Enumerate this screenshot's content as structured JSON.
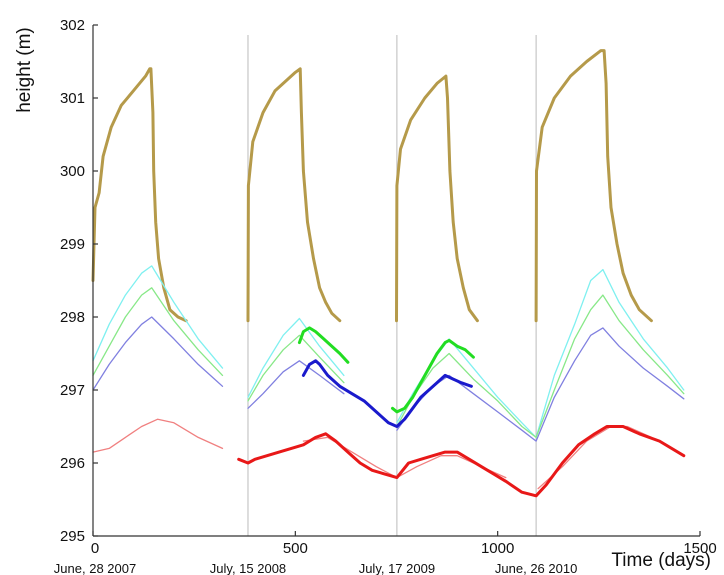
{
  "chart_data": {
    "type": "line",
    "title": "",
    "xlabel": "Time (days)",
    "ylabel": "height (m)",
    "xlim": [
      0,
      1500
    ],
    "ylim": [
      295,
      302
    ],
    "x_ticks": [
      0,
      500,
      1000,
      1500
    ],
    "y_ticks": [
      295,
      296,
      297,
      298,
      299,
      300,
      301,
      302
    ],
    "x_tick_labels": [
      "0",
      "500",
      "1000",
      "1500"
    ],
    "y_tick_labels": [
      "295",
      "296",
      "297",
      "298",
      "299",
      "300",
      "301",
      "302"
    ],
    "date_markers": [
      {
        "x": 0,
        "label": "June, 28 2007"
      },
      {
        "x": 383,
        "label": "July, 15 2008"
      },
      {
        "x": 751,
        "label": "July, 17 2009"
      },
      {
        "x": 1095,
        "label": "June, 26 2010"
      }
    ],
    "grid": false,
    "series": [
      {
        "color": "#b59a4a",
        "values": [
          [
            0,
            298.5
          ],
          [
            5,
            299.5
          ],
          [
            15,
            299.7
          ],
          [
            25,
            300.2
          ],
          [
            45,
            300.6
          ],
          [
            70,
            300.9
          ],
          [
            100,
            301.1
          ],
          [
            130,
            301.3
          ],
          [
            140,
            301.4
          ],
          [
            143,
            301.4
          ],
          [
            148,
            300.8
          ],
          [
            150,
            300.0
          ],
          [
            155,
            299.3
          ],
          [
            162,
            298.8
          ],
          [
            175,
            298.4
          ],
          [
            190,
            298.1
          ],
          [
            210,
            298.0
          ],
          [
            230,
            297.95
          ],
          [
            383,
            297.95
          ],
          [
            384,
            299.8
          ],
          [
            395,
            300.4
          ],
          [
            420,
            300.8
          ],
          [
            450,
            301.1
          ],
          [
            480,
            301.25
          ],
          [
            500,
            301.35
          ],
          [
            512,
            301.4
          ],
          [
            515,
            300.8
          ],
          [
            520,
            300.0
          ],
          [
            530,
            299.3
          ],
          [
            545,
            298.8
          ],
          [
            560,
            298.4
          ],
          [
            575,
            298.2
          ],
          [
            590,
            298.05
          ],
          [
            610,
            297.95
          ],
          [
            750,
            297.95
          ],
          [
            751,
            299.8
          ],
          [
            760,
            300.3
          ],
          [
            785,
            300.7
          ],
          [
            820,
            301.0
          ],
          [
            850,
            301.2
          ],
          [
            872,
            301.3
          ],
          [
            876,
            301.0
          ],
          [
            882,
            300.0
          ],
          [
            890,
            299.3
          ],
          [
            900,
            298.8
          ],
          [
            915,
            298.4
          ],
          [
            930,
            298.1
          ],
          [
            950,
            297.95
          ],
          [
            1095,
            297.95
          ],
          [
            1096,
            300.0
          ],
          [
            1110,
            300.6
          ],
          [
            1140,
            301.0
          ],
          [
            1180,
            301.3
          ],
          [
            1220,
            301.5
          ],
          [
            1255,
            301.65
          ],
          [
            1263,
            301.65
          ],
          [
            1268,
            301.2
          ],
          [
            1272,
            300.2
          ],
          [
            1280,
            299.5
          ],
          [
            1295,
            299.0
          ],
          [
            1310,
            298.6
          ],
          [
            1330,
            298.3
          ],
          [
            1350,
            298.1
          ],
          [
            1380,
            297.95
          ],
          [
            1460,
            297.95
          ]
        ]
      },
      {
        "color": "#7ff0f0",
        "values": [
          [
            0,
            297.4
          ],
          [
            40,
            297.9
          ],
          [
            80,
            298.3
          ],
          [
            120,
            298.6
          ],
          [
            145,
            298.7
          ],
          [
            200,
            298.2
          ],
          [
            260,
            297.7
          ],
          [
            320,
            297.3
          ],
          [
            383,
            296.9
          ],
          [
            420,
            297.3
          ],
          [
            470,
            297.75
          ],
          [
            510,
            297.98
          ],
          [
            560,
            297.6
          ],
          [
            620,
            297.2
          ],
          [
            690,
            296.85
          ],
          [
            751,
            296.55
          ],
          [
            790,
            296.95
          ],
          [
            840,
            297.4
          ],
          [
            880,
            297.7
          ],
          [
            940,
            297.3
          ],
          [
            1000,
            296.9
          ],
          [
            1060,
            296.55
          ],
          [
            1095,
            296.35
          ],
          [
            1140,
            297.2
          ],
          [
            1190,
            297.9
          ],
          [
            1230,
            298.5
          ],
          [
            1260,
            298.65
          ],
          [
            1300,
            298.2
          ],
          [
            1360,
            297.7
          ],
          [
            1420,
            297.3
          ],
          [
            1460,
            297.0
          ]
        ]
      },
      {
        "color": "#88e888",
        "values": [
          [
            0,
            297.2
          ],
          [
            40,
            297.6
          ],
          [
            80,
            298.0
          ],
          [
            120,
            298.3
          ],
          [
            145,
            298.4
          ],
          [
            200,
            297.95
          ],
          [
            260,
            297.55
          ],
          [
            320,
            297.2
          ],
          [
            383,
            296.85
          ],
          [
            420,
            297.2
          ],
          [
            470,
            297.55
          ],
          [
            510,
            297.75
          ],
          [
            560,
            297.45
          ],
          [
            620,
            297.1
          ],
          [
            690,
            296.8
          ],
          [
            751,
            296.5
          ],
          [
            790,
            296.9
          ],
          [
            840,
            297.3
          ],
          [
            880,
            297.5
          ],
          [
            940,
            297.15
          ],
          [
            1000,
            296.85
          ],
          [
            1060,
            296.5
          ],
          [
            1095,
            296.35
          ],
          [
            1140,
            297.0
          ],
          [
            1190,
            297.7
          ],
          [
            1230,
            298.1
          ],
          [
            1260,
            298.3
          ],
          [
            1300,
            297.95
          ],
          [
            1360,
            297.55
          ],
          [
            1420,
            297.2
          ],
          [
            1460,
            296.95
          ]
        ]
      },
      {
        "color": "#8080e0",
        "values": [
          [
            0,
            297.0
          ],
          [
            40,
            297.35
          ],
          [
            80,
            297.65
          ],
          [
            120,
            297.9
          ],
          [
            145,
            298.0
          ],
          [
            200,
            297.7
          ],
          [
            260,
            297.35
          ],
          [
            320,
            297.05
          ],
          [
            383,
            296.75
          ],
          [
            420,
            296.95
          ],
          [
            470,
            297.25
          ],
          [
            510,
            297.4
          ],
          [
            560,
            297.2
          ],
          [
            620,
            296.95
          ],
          [
            690,
            296.7
          ],
          [
            751,
            296.45
          ],
          [
            790,
            296.75
          ],
          [
            840,
            297.05
          ],
          [
            880,
            297.2
          ],
          [
            940,
            296.95
          ],
          [
            1000,
            296.7
          ],
          [
            1060,
            296.45
          ],
          [
            1095,
            296.3
          ],
          [
            1140,
            296.9
          ],
          [
            1190,
            297.4
          ],
          [
            1230,
            297.75
          ],
          [
            1260,
            297.85
          ],
          [
            1300,
            297.6
          ],
          [
            1360,
            297.3
          ],
          [
            1420,
            297.05
          ],
          [
            1460,
            296.88
          ]
        ]
      },
      {
        "color": "#f08080",
        "values": [
          [
            0,
            296.15
          ],
          [
            40,
            296.2
          ],
          [
            80,
            296.35
          ],
          [
            120,
            296.5
          ],
          [
            160,
            296.6
          ],
          [
            200,
            296.55
          ],
          [
            260,
            296.35
          ],
          [
            320,
            296.2
          ],
          [
            383,
            296.05
          ],
          [
            450,
            296.15
          ],
          [
            520,
            296.3
          ],
          [
            580,
            296.35
          ],
          [
            640,
            296.15
          ],
          [
            700,
            295.95
          ],
          [
            751,
            295.8
          ],
          [
            800,
            295.95
          ],
          [
            860,
            296.1
          ],
          [
            900,
            296.1
          ],
          [
            960,
            295.95
          ],
          [
            1020,
            295.8
          ],
          [
            1100,
            295.65
          ],
          [
            1160,
            295.95
          ],
          [
            1220,
            296.3
          ],
          [
            1280,
            296.5
          ],
          [
            1320,
            296.5
          ],
          [
            1380,
            296.35
          ],
          [
            1460,
            296.15
          ]
        ]
      },
      {
        "color": "#e81818",
        "values": [
          [
            360,
            296.05
          ],
          [
            383,
            296.0
          ],
          [
            400,
            296.05
          ],
          [
            430,
            296.1
          ],
          [
            460,
            296.15
          ],
          [
            490,
            296.2
          ],
          [
            520,
            296.25
          ],
          [
            550,
            296.35
          ],
          [
            575,
            296.4
          ],
          [
            600,
            296.3
          ],
          [
            630,
            296.15
          ],
          [
            660,
            296.0
          ],
          [
            690,
            295.9
          ],
          [
            720,
            295.85
          ],
          [
            751,
            295.8
          ],
          [
            780,
            296.0
          ],
          [
            810,
            296.05
          ],
          [
            840,
            296.1
          ],
          [
            870,
            296.15
          ],
          [
            900,
            296.15
          ],
          [
            930,
            296.05
          ],
          [
            960,
            295.95
          ],
          [
            990,
            295.85
          ],
          [
            1020,
            295.75
          ],
          [
            1060,
            295.6
          ],
          [
            1095,
            295.55
          ],
          [
            1120,
            295.7
          ],
          [
            1160,
            296.0
          ],
          [
            1200,
            296.25
          ],
          [
            1240,
            296.4
          ],
          [
            1270,
            296.5
          ],
          [
            1310,
            296.5
          ],
          [
            1350,
            296.4
          ],
          [
            1400,
            296.3
          ],
          [
            1460,
            296.1
          ]
        ]
      },
      {
        "color": "#22dd22",
        "values": [
          [
            510,
            297.65
          ],
          [
            520,
            297.8
          ],
          [
            535,
            297.85
          ],
          [
            550,
            297.8
          ],
          [
            570,
            297.7
          ],
          [
            590,
            297.6
          ],
          [
            610,
            297.5
          ],
          [
            630,
            297.38
          ],
          [
            740,
            296.75
          ],
          [
            751,
            296.7
          ],
          [
            770,
            296.75
          ],
          [
            790,
            296.9
          ],
          [
            810,
            297.1
          ],
          [
            830,
            297.3
          ],
          [
            850,
            297.5
          ],
          [
            870,
            297.65
          ],
          [
            880,
            297.68
          ],
          [
            900,
            297.6
          ],
          [
            920,
            297.55
          ],
          [
            940,
            297.45
          ]
        ]
      },
      {
        "color": "#1a1acc",
        "values": [
          [
            520,
            297.2
          ],
          [
            535,
            297.35
          ],
          [
            550,
            297.4
          ],
          [
            560,
            297.35
          ],
          [
            580,
            297.2
          ],
          [
            610,
            297.05
          ],
          [
            640,
            296.95
          ],
          [
            670,
            296.85
          ],
          [
            700,
            296.7
          ],
          [
            730,
            296.55
          ],
          [
            751,
            296.5
          ],
          [
            770,
            296.6
          ],
          [
            790,
            296.75
          ],
          [
            810,
            296.9
          ],
          [
            830,
            297.0
          ],
          [
            850,
            297.1
          ],
          [
            870,
            297.2
          ],
          [
            890,
            297.15
          ],
          [
            910,
            297.1
          ],
          [
            935,
            297.05
          ]
        ]
      }
    ]
  }
}
